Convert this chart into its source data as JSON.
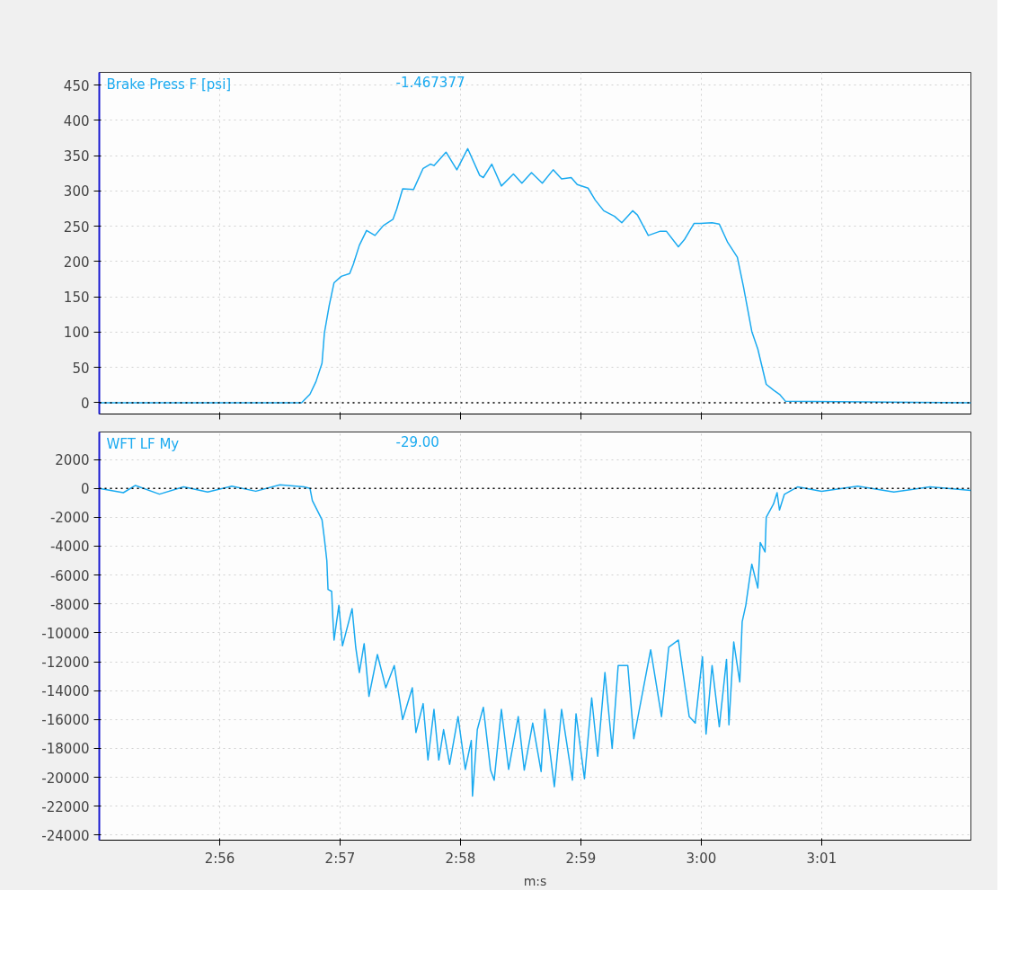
{
  "chart_data": [
    {
      "type": "line",
      "tick_labels": "y",
      "legend": "top left",
      "grid": true,
      "line_style": "solid",
      "marker": "none",
      "xlim": [
        175.0,
        182.24
      ],
      "xticks": [
        {
          "value": 176,
          "label": null
        },
        {
          "value": 177,
          "label": null
        },
        {
          "value": 178,
          "label": null
        },
        {
          "value": 179,
          "label": null
        },
        {
          "value": 180,
          "label": null
        },
        {
          "value": 181,
          "label": null
        }
      ],
      "ylim": [
        -16,
        468
      ],
      "yticks": [
        0,
        50,
        100,
        150,
        200,
        250,
        300,
        350,
        400,
        450
      ],
      "annotations": [
        "-1.467377"
      ],
      "ref_lines": [
        {
          "axis": "y",
          "value": 0,
          "label": null,
          "color": "#000000",
          "line_style": "dotted"
        }
      ],
      "series": [
        {
          "name": "Brake Press F [psi]",
          "color": "#1aaaf0",
          "x": [
            175.0,
            176.68,
            176.75,
            176.8,
            176.85,
            176.87,
            176.91,
            176.95,
            177.01,
            177.08,
            177.11,
            177.16,
            177.22,
            177.29,
            177.36,
            177.44,
            177.47,
            177.52,
            177.61,
            177.69,
            177.75,
            177.78,
            177.88,
            177.97,
            178.06,
            178.16,
            178.19,
            178.26,
            178.34,
            178.44,
            178.51,
            178.59,
            178.68,
            178.77,
            178.84,
            178.92,
            178.97,
            179.06,
            179.12,
            179.19,
            179.28,
            179.34,
            179.43,
            179.47,
            179.56,
            179.66,
            179.71,
            179.81,
            179.86,
            179.94,
            179.99,
            180.09,
            180.15,
            180.22,
            180.3,
            180.35,
            180.42,
            180.47,
            180.54,
            180.6,
            180.65,
            180.7,
            182.24
          ],
          "values": [
            0,
            0,
            12,
            30,
            56,
            99,
            138,
            170,
            179,
            183,
            196,
            223,
            244,
            237,
            251,
            260,
            274,
            303,
            302,
            332,
            338,
            336,
            355,
            330,
            360,
            322,
            319,
            338,
            307,
            324,
            311,
            326,
            311,
            330,
            317,
            319,
            309,
            304,
            287,
            272,
            264,
            255,
            272,
            266,
            237,
            243,
            243,
            221,
            231,
            254,
            254,
            255,
            253,
            227,
            206,
            165,
            101,
            76,
            26,
            18,
            12,
            2,
            0
          ]
        }
      ]
    },
    {
      "type": "line",
      "legend": "top left",
      "grid": true,
      "line_style": "solid",
      "marker": "none",
      "xlabel": "m:s",
      "xlim": [
        175.0,
        182.24
      ],
      "xticks": [
        {
          "value": 176,
          "label": "2:56"
        },
        {
          "value": 177,
          "label": "2:57"
        },
        {
          "value": 178,
          "label": "2:58"
        },
        {
          "value": 179,
          "label": "2:59"
        },
        {
          "value": 180,
          "label": "3:00"
        },
        {
          "value": 181,
          "label": "3:01"
        }
      ],
      "ylim": [
        -24350,
        3900
      ],
      "yticks": [
        2000,
        0,
        -2000,
        -4000,
        -6000,
        -8000,
        -10000,
        -12000,
        -14000,
        -16000,
        -18000,
        -20000,
        -22000,
        -24000
      ],
      "annotations": [
        "-29.00"
      ],
      "ref_lines": [
        {
          "axis": "y",
          "value": 0,
          "label": null,
          "color": "#000000",
          "line_style": "dotted"
        }
      ],
      "series": [
        {
          "name": "WFT LF My",
          "color": "#1aaaf0",
          "x": [
            175.0,
            175.2,
            175.3,
            175.5,
            175.7,
            175.9,
            176.1,
            176.3,
            176.5,
            176.7,
            176.75,
            176.77,
            176.85,
            176.87,
            176.89,
            176.9,
            176.93,
            176.94,
            176.95,
            176.99,
            177.02,
            177.1,
            177.13,
            177.16,
            177.2,
            177.24,
            177.31,
            177.38,
            177.45,
            177.52,
            177.6,
            177.63,
            177.69,
            177.73,
            177.78,
            177.82,
            177.86,
            177.91,
            177.98,
            178.04,
            178.09,
            178.1,
            178.14,
            178.19,
            178.25,
            178.28,
            178.34,
            178.4,
            178.48,
            178.53,
            178.6,
            178.67,
            178.7,
            178.78,
            178.84,
            178.93,
            178.96,
            179.03,
            179.09,
            179.14,
            179.2,
            179.26,
            179.31,
            179.39,
            179.44,
            179.58,
            179.67,
            179.73,
            179.81,
            179.9,
            179.95,
            180.01,
            180.04,
            180.09,
            180.15,
            180.21,
            180.23,
            180.27,
            180.32,
            180.34,
            180.37,
            180.4,
            180.42,
            180.47,
            180.49,
            180.53,
            180.54,
            180.6,
            180.63,
            180.65,
            180.69,
            180.8,
            181.0,
            181.3,
            181.6,
            181.9,
            182.24
          ],
          "values": [
            0,
            -300,
            200,
            -400,
            100,
            -250,
            150,
            -200,
            250,
            100,
            0,
            -850,
            -2170,
            -3500,
            -5000,
            -7000,
            -7130,
            -9000,
            -10500,
            -8100,
            -10900,
            -8330,
            -11000,
            -12750,
            -10750,
            -14400,
            -11500,
            -13800,
            -12260,
            -16000,
            -13800,
            -16900,
            -14900,
            -18800,
            -15300,
            -18800,
            -16700,
            -19100,
            -15800,
            -19450,
            -17450,
            -21300,
            -16700,
            -15150,
            -19500,
            -20200,
            -15300,
            -19450,
            -15800,
            -19500,
            -16250,
            -19600,
            -15300,
            -20650,
            -15300,
            -20200,
            -15600,
            -20100,
            -14500,
            -18550,
            -12750,
            -18000,
            -12260,
            -12260,
            -17330,
            -11170,
            -15800,
            -11000,
            -10500,
            -15800,
            -16250,
            -11650,
            -17000,
            -12260,
            -16500,
            -11840,
            -16370,
            -10630,
            -13400,
            -9240,
            -8100,
            -6340,
            -5250,
            -6900,
            -3750,
            -4400,
            -2000,
            -1090,
            -300,
            -1500,
            -420,
            100,
            -200,
            150,
            -250,
            100,
            -150
          ]
        }
      ]
    }
  ]
}
